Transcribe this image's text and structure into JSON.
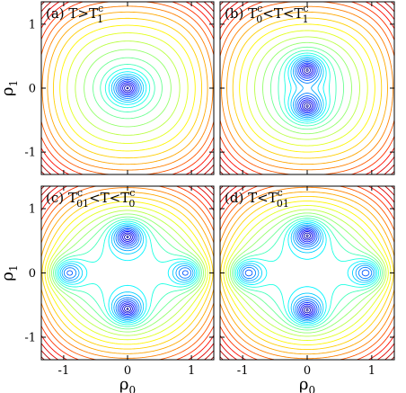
{
  "chart_data": [
    {
      "type": "contour",
      "panel_label": {
        "main": "(a) T>T",
        "sup": "c",
        "sub": "1"
      },
      "x_range": [
        -1.35,
        1.35
      ],
      "y_range": [
        -1.35,
        1.35
      ],
      "yticks": [
        "-1",
        "0",
        "1"
      ],
      "xticks": [],
      "ylabel": {
        "main": "ρ",
        "sub": "1"
      },
      "minima": [
        [
          0,
          0
        ]
      ],
      "levels": 26
    },
    {
      "type": "contour",
      "panel_label": {
        "pre": "(b) T",
        "presup": "c",
        "presub": "0",
        "mid": "<T<T",
        "sup": "c",
        "sub": "1"
      },
      "x_range": [
        -1.35,
        1.35
      ],
      "y_range": [
        -1.35,
        1.35
      ],
      "yticks": [],
      "xticks": [],
      "minima": [
        [
          0,
          0.3
        ],
        [
          0,
          -0.3
        ]
      ],
      "levels": 26
    },
    {
      "type": "contour",
      "panel_label": {
        "pre": "(c) T",
        "presup": "c",
        "presub": "01",
        "mid": "<T<T",
        "sup": "c",
        "sub": "0"
      },
      "x_range": [
        -1.35,
        1.35
      ],
      "y_range": [
        -1.35,
        1.35
      ],
      "yticks": [
        "-1",
        "0",
        "1"
      ],
      "xticks": [
        "-1",
        "0",
        "1"
      ],
      "ylabel": {
        "main": "ρ",
        "sub": "1"
      },
      "xlabel": {
        "main": "ρ",
        "sub": "0"
      },
      "minima": [
        [
          0,
          0.58
        ],
        [
          0,
          -0.58
        ],
        [
          -0.95,
          0
        ],
        [
          0.95,
          0
        ]
      ],
      "levels": 26
    },
    {
      "type": "contour",
      "panel_label": {
        "pre": "(d) T<T",
        "sup": "c",
        "sub": "01"
      },
      "x_range": [
        -1.35,
        1.35
      ],
      "y_range": [
        -1.35,
        1.35
      ],
      "yticks": [],
      "xticks": [
        "-1",
        "0",
        "1"
      ],
      "xlabel": {
        "main": "ρ",
        "sub": "0"
      },
      "minima": [
        [
          -0.95,
          0
        ],
        [
          0.95,
          0
        ],
        [
          0,
          0.6
        ],
        [
          0,
          -0.6
        ]
      ],
      "levels": 26
    }
  ]
}
